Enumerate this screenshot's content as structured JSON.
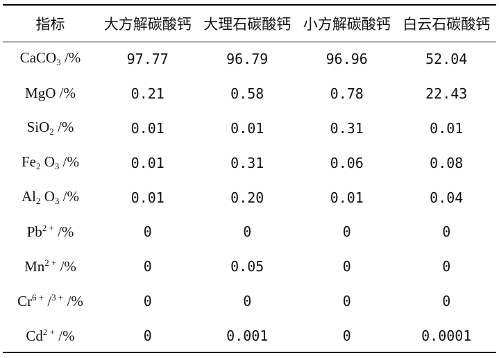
{
  "table": {
    "headers": [
      "指标",
      "大方解碳酸钙",
      "大理石碳酸钙",
      "小方解碳酸钙",
      "白云石碳酸钙"
    ],
    "rows": [
      {
        "label": [
          {
            "t": "CaCO"
          },
          {
            "t": "3",
            "k": "sub"
          },
          {
            "t": " /%"
          }
        ],
        "values": [
          "97.77",
          "96.79",
          "96.96",
          "52.04"
        ]
      },
      {
        "label": [
          {
            "t": "MgO /%"
          }
        ],
        "values": [
          "0.21",
          "0.58",
          "0.78",
          "22.43"
        ]
      },
      {
        "label": [
          {
            "t": "SiO"
          },
          {
            "t": "2",
            "k": "sub"
          },
          {
            "t": " /%"
          }
        ],
        "values": [
          "0.01",
          "0.01",
          "0.31",
          "0.01"
        ]
      },
      {
        "label": [
          {
            "t": "Fe"
          },
          {
            "t": "2",
            "k": "sub"
          },
          {
            "t": " O"
          },
          {
            "t": "3",
            "k": "sub"
          },
          {
            "t": " /%"
          }
        ],
        "values": [
          "0.01",
          "0.31",
          "0.06",
          "0.08"
        ]
      },
      {
        "label": [
          {
            "t": "Al"
          },
          {
            "t": "2",
            "k": "sub"
          },
          {
            "t": " O"
          },
          {
            "t": "3",
            "k": "sub"
          },
          {
            "t": " /%"
          }
        ],
        "values": [
          "0.01",
          "0.20",
          "0.01",
          "0.04"
        ]
      },
      {
        "label": [
          {
            "t": "Pb"
          },
          {
            "t": "2 +",
            "k": "sup"
          },
          {
            "t": " /%"
          }
        ],
        "values": [
          "0",
          "0",
          "0",
          "0"
        ]
      },
      {
        "label": [
          {
            "t": "Mn"
          },
          {
            "t": "2 +",
            "k": "sup"
          },
          {
            "t": " /%"
          }
        ],
        "values": [
          "0",
          "0.05",
          "0",
          "0"
        ]
      },
      {
        "label": [
          {
            "t": "Cr"
          },
          {
            "t": "6 +",
            "k": "sup"
          },
          {
            "t": " /"
          },
          {
            "t": "3 +",
            "k": "sup"
          },
          {
            "t": " /%"
          }
        ],
        "values": [
          "0",
          "0",
          "0",
          "0"
        ]
      },
      {
        "label": [
          {
            "t": "Cd"
          },
          {
            "t": "2 +",
            "k": "sup"
          },
          {
            "t": " /%"
          }
        ],
        "values": [
          "0",
          "0.001",
          "0",
          "0.0001"
        ]
      }
    ]
  }
}
